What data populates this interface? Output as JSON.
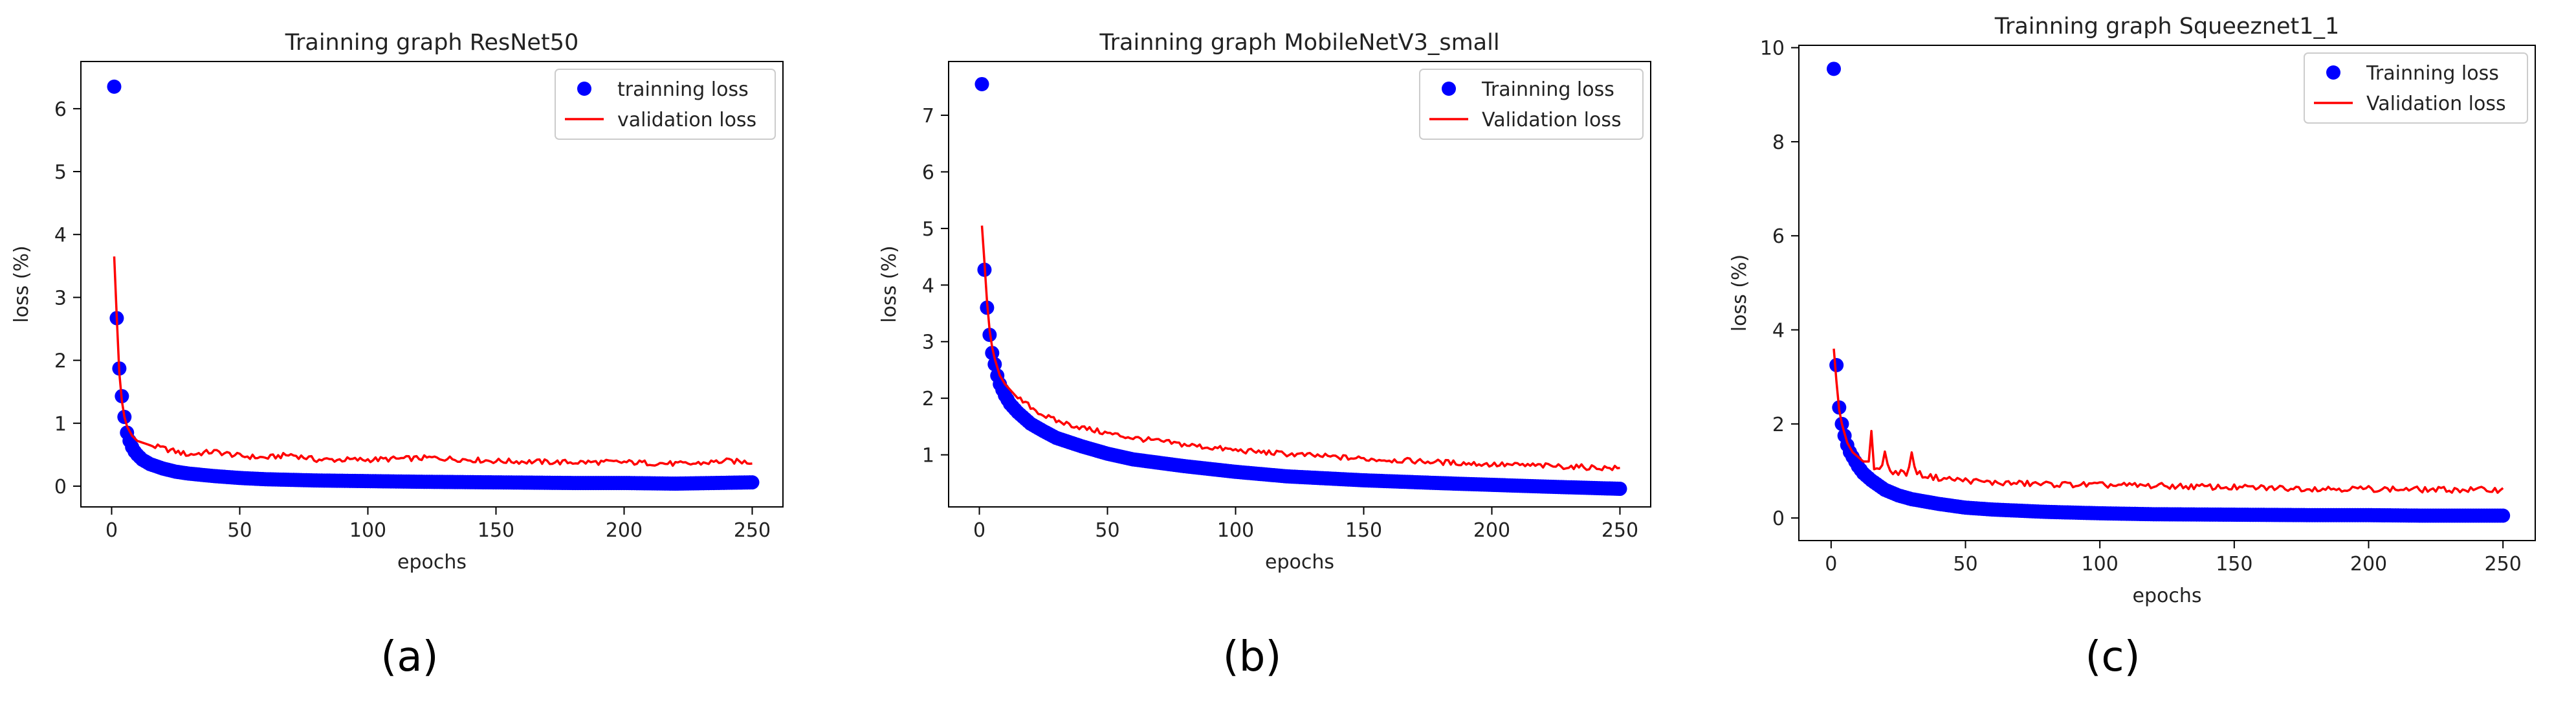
{
  "chart_data": [
    {
      "type": "scatter",
      "title": "Trainning graph ResNet50",
      "xlabel": "epochs",
      "ylabel": "loss (%)",
      "xlim": [
        -12,
        262
      ],
      "ylim": [
        -0.33,
        6.75
      ],
      "xticks": [
        0,
        50,
        100,
        150,
        200,
        250
      ],
      "yticks": [
        0,
        1,
        2,
        3,
        4,
        5,
        6
      ],
      "legend_position": "top-right",
      "panel_label": "(a)",
      "series": [
        {
          "name": "trainning loss",
          "style": "markers",
          "color": "#0000ff",
          "x": [
            1,
            2,
            3,
            4,
            5,
            6,
            7,
            8,
            9,
            10,
            12,
            15,
            20,
            25,
            30,
            40,
            50,
            60,
            80,
            100,
            120,
            150,
            180,
            200,
            220,
            250
          ],
          "y": [
            6.35,
            2.67,
            1.87,
            1.43,
            1.1,
            0.85,
            0.72,
            0.62,
            0.55,
            0.5,
            0.42,
            0.35,
            0.28,
            0.23,
            0.2,
            0.16,
            0.13,
            0.11,
            0.09,
            0.08,
            0.07,
            0.06,
            0.05,
            0.05,
            0.04,
            0.06
          ]
        },
        {
          "name": "validation loss",
          "style": "line",
          "color": "#ff0000",
          "x": [
            1,
            2,
            3,
            4,
            5,
            6,
            8,
            10,
            15,
            20,
            25,
            30,
            40,
            50,
            60,
            70,
            80,
            100,
            125,
            150,
            175,
            200,
            225,
            240,
            250
          ],
          "y": [
            3.65,
            2.7,
            1.8,
            1.35,
            1.1,
            0.95,
            0.8,
            0.72,
            0.65,
            0.6,
            0.55,
            0.5,
            0.55,
            0.48,
            0.45,
            0.5,
            0.42,
            0.42,
            0.45,
            0.4,
            0.38,
            0.38,
            0.35,
            0.4,
            0.38
          ]
        }
      ]
    },
    {
      "type": "scatter",
      "title": "Trainning graph MobileNetV3_small",
      "xlabel": "epochs",
      "ylabel": "loss (%)",
      "xlim": [
        -12,
        262
      ],
      "ylim": [
        0.08,
        7.95
      ],
      "xticks": [
        0,
        50,
        100,
        150,
        200,
        250
      ],
      "yticks": [
        1,
        2,
        3,
        4,
        5,
        6,
        7
      ],
      "legend_position": "top-right",
      "panel_label": "(b)",
      "series": [
        {
          "name": "Trainning loss",
          "style": "markers",
          "color": "#0000ff",
          "x": [
            1,
            2,
            3,
            4,
            5,
            6,
            7,
            8,
            10,
            12,
            15,
            20,
            25,
            30,
            40,
            50,
            60,
            80,
            100,
            120,
            150,
            180,
            200,
            220,
            250
          ],
          "y": [
            7.55,
            4.27,
            3.6,
            3.12,
            2.8,
            2.6,
            2.4,
            2.25,
            2.05,
            1.9,
            1.75,
            1.55,
            1.42,
            1.3,
            1.15,
            1.02,
            0.92,
            0.8,
            0.7,
            0.62,
            0.55,
            0.5,
            0.47,
            0.44,
            0.4
          ]
        },
        {
          "name": "Validation loss",
          "style": "line",
          "color": "#ff0000",
          "x": [
            1,
            2,
            3,
            4,
            5,
            6,
            8,
            10,
            15,
            20,
            25,
            30,
            40,
            50,
            60,
            80,
            100,
            125,
            150,
            175,
            200,
            225,
            250
          ],
          "y": [
            5.05,
            4.4,
            3.7,
            3.2,
            2.9,
            2.7,
            2.4,
            2.25,
            2.0,
            1.85,
            1.7,
            1.6,
            1.48,
            1.38,
            1.3,
            1.18,
            1.08,
            1.0,
            0.93,
            0.88,
            0.83,
            0.8,
            0.76
          ]
        }
      ]
    },
    {
      "type": "scatter",
      "title": "Trainning graph Squeeznet1_1",
      "xlabel": "epochs",
      "ylabel": "loss (%)",
      "xlim": [
        -12,
        262
      ],
      "ylim": [
        -0.48,
        10.05
      ],
      "xticks": [
        0,
        50,
        100,
        150,
        200,
        250
      ],
      "yticks": [
        0,
        2,
        4,
        6,
        8,
        10
      ],
      "legend_position": "top-right",
      "panel_label": "(c)",
      "series": [
        {
          "name": "Trainning loss",
          "style": "markers",
          "color": "#0000ff",
          "x": [
            1,
            2,
            3,
            4,
            5,
            6,
            7,
            8,
            10,
            12,
            15,
            20,
            25,
            30,
            40,
            50,
            60,
            80,
            100,
            120,
            150,
            180,
            200,
            220,
            250
          ],
          "y": [
            9.55,
            3.25,
            2.35,
            2.0,
            1.75,
            1.55,
            1.4,
            1.3,
            1.1,
            0.95,
            0.8,
            0.6,
            0.48,
            0.4,
            0.3,
            0.22,
            0.18,
            0.13,
            0.1,
            0.08,
            0.07,
            0.06,
            0.06,
            0.05,
            0.05
          ]
        },
        {
          "name": "Validation loss",
          "style": "line",
          "color": "#ff0000",
          "x": [
            1,
            2,
            3,
            4,
            5,
            6,
            8,
            10,
            12,
            14,
            15,
            16,
            18,
            20,
            22,
            24,
            26,
            28,
            30,
            32,
            35,
            40,
            50,
            60,
            80,
            100,
            125,
            150,
            175,
            200,
            225,
            250
          ],
          "y": [
            3.6,
            2.9,
            2.3,
            2.0,
            1.8,
            1.6,
            1.4,
            1.3,
            1.2,
            1.2,
            1.85,
            1.1,
            1.0,
            1.35,
            1.0,
            0.95,
            1.0,
            0.9,
            1.35,
            0.95,
            0.9,
            0.85,
            0.8,
            0.75,
            0.72,
            0.7,
            0.68,
            0.65,
            0.63,
            0.62,
            0.6,
            0.6
          ]
        }
      ]
    }
  ]
}
